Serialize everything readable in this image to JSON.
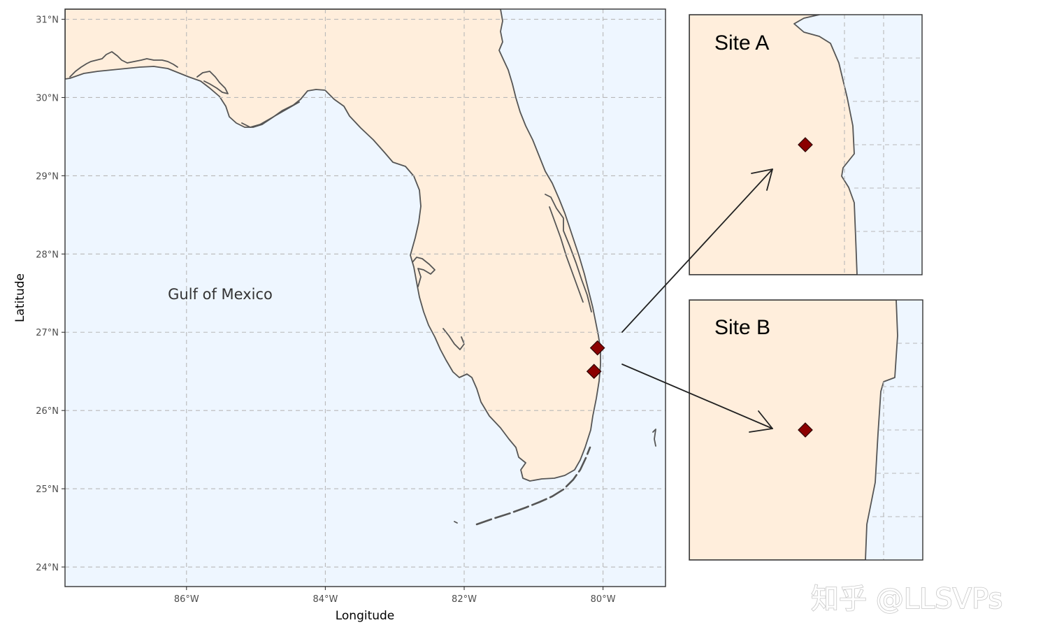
{
  "map": {
    "xlabel": "Longitude",
    "ylabel": "Latitude",
    "x_ticks": [
      {
        "value": -86,
        "label": "86°W"
      },
      {
        "value": -84,
        "label": "84°W"
      },
      {
        "value": -82,
        "label": "82°W"
      },
      {
        "value": -80,
        "label": "80°W"
      }
    ],
    "y_ticks": [
      {
        "value": 24,
        "label": "24°N"
      },
      {
        "value": 25,
        "label": "25°N"
      },
      {
        "value": 26,
        "label": "26°N"
      },
      {
        "value": 27,
        "label": "27°N"
      },
      {
        "value": 28,
        "label": "28°N"
      },
      {
        "value": 29,
        "label": "29°N"
      },
      {
        "value": 30,
        "label": "30°N"
      },
      {
        "value": 31,
        "label": "31°N"
      }
    ],
    "xlim": [
      -87.75,
      -79.1
    ],
    "ylim": [
      23.75,
      31.13
    ],
    "grid": "dashed",
    "water_label": "Gulf of Mexico",
    "sites": [
      {
        "name": "Site A",
        "lon": -80.08,
        "lat": 26.8
      },
      {
        "name": "Site B",
        "lon": -80.13,
        "lat": 26.5
      }
    ],
    "colors": {
      "land": "#ffeedc",
      "water": "#eef6ff",
      "coast": "#555555",
      "marker": "#8b0000",
      "grid": "#b8b8b8"
    }
  },
  "insets": [
    {
      "label": "Site A"
    },
    {
      "label": "Site B"
    }
  ],
  "watermark": "知乎 @LLSVPs"
}
